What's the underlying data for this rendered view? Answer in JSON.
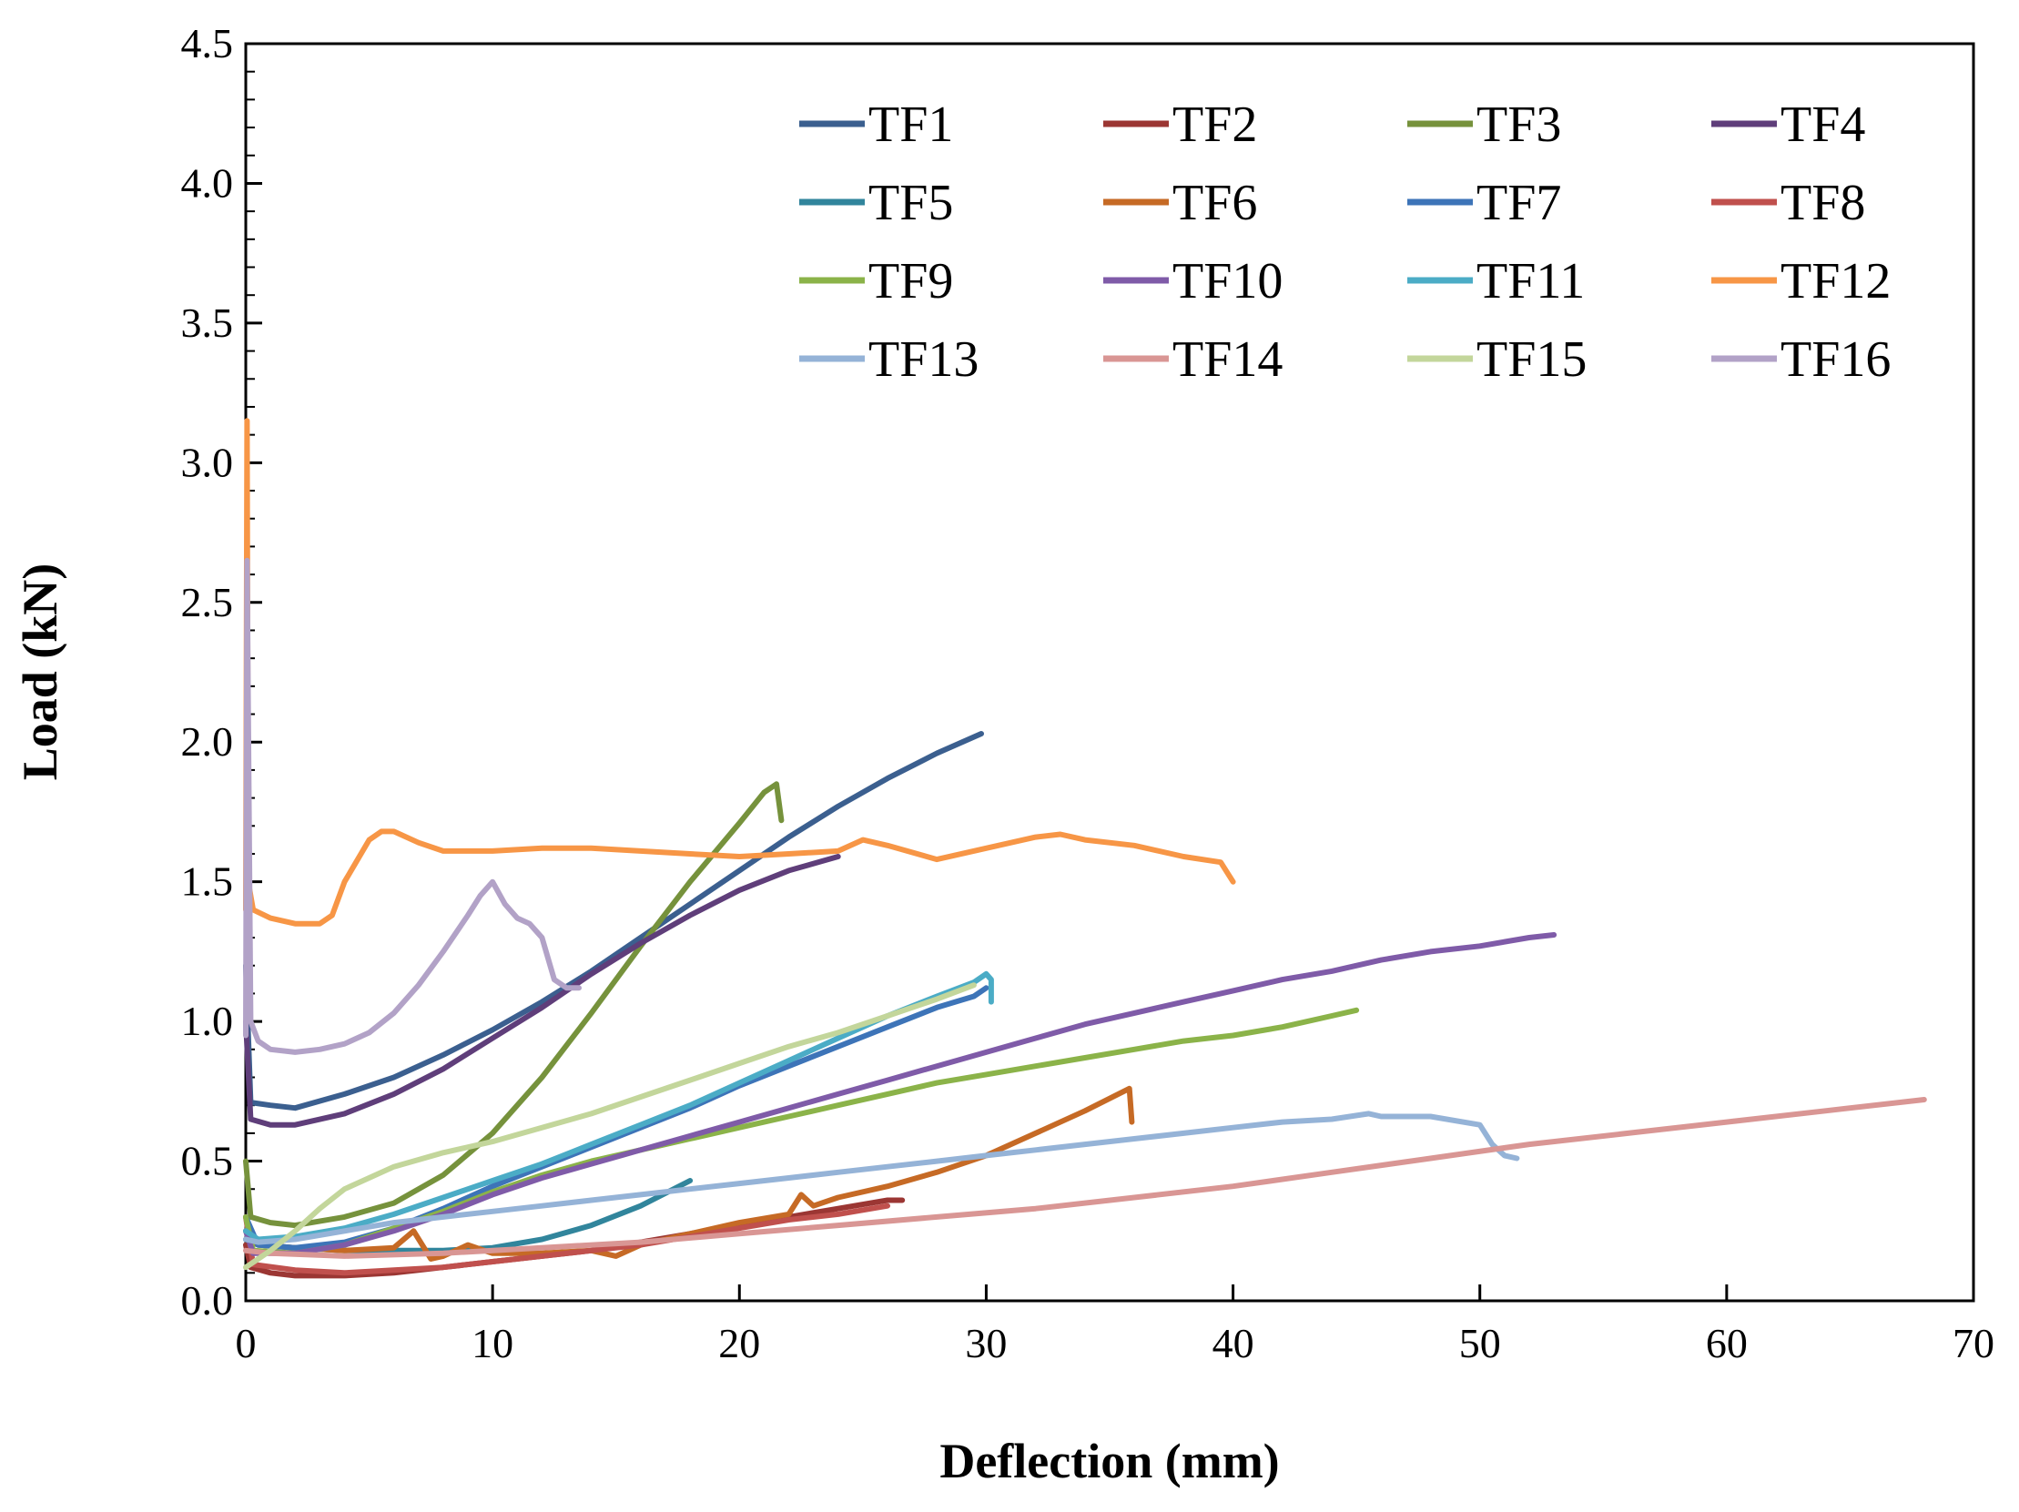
{
  "chart_data": {
    "type": "line",
    "title": "",
    "xlabel": "Deflection (mm)",
    "ylabel": "Load (kN)",
    "xlim": [
      0,
      70
    ],
    "ylim": [
      0,
      4.5
    ],
    "xticks": [
      0,
      10,
      20,
      30,
      40,
      50,
      60,
      70
    ],
    "yticks": [
      0.0,
      0.5,
      1.0,
      1.5,
      2.0,
      2.5,
      3.0,
      3.5,
      4.0,
      4.5
    ],
    "xtick_labels": [
      "0",
      "10",
      "20",
      "30",
      "40",
      "50",
      "60",
      "70"
    ],
    "ytick_labels": [
      "0.0",
      "0.5",
      "1.0",
      "1.5",
      "2.0",
      "2.5",
      "3.0",
      "3.5",
      "4.0",
      "4.5"
    ],
    "grid": false,
    "legend_position": "top-right",
    "series": [
      {
        "name": "TF1",
        "color": "#3b5f8f",
        "x": [
          0,
          0.2,
          1,
          2,
          4,
          6,
          8,
          10,
          12,
          14,
          16,
          18,
          20,
          22,
          24,
          26,
          28,
          29.8
        ],
        "y": [
          1.2,
          0.71,
          0.7,
          0.69,
          0.74,
          0.8,
          0.88,
          0.97,
          1.07,
          1.18,
          1.3,
          1.42,
          1.54,
          1.66,
          1.77,
          1.87,
          1.96,
          2.03
        ]
      },
      {
        "name": "TF2",
        "color": "#9b3633",
        "x": [
          0,
          0.2,
          1,
          2,
          4,
          6,
          8,
          10,
          12,
          14,
          16,
          18,
          20,
          22,
          24,
          26,
          26.6
        ],
        "y": [
          0.2,
          0.12,
          0.1,
          0.09,
          0.09,
          0.1,
          0.12,
          0.14,
          0.16,
          0.18,
          0.21,
          0.24,
          0.27,
          0.3,
          0.33,
          0.36,
          0.36
        ]
      },
      {
        "name": "TF3",
        "color": "#76923c",
        "x": [
          0,
          0.2,
          1,
          2,
          4,
          6,
          8,
          10,
          12,
          14,
          16,
          18,
          20,
          21,
          21.5,
          21.7
        ],
        "y": [
          0.5,
          0.3,
          0.28,
          0.27,
          0.3,
          0.35,
          0.45,
          0.6,
          0.8,
          1.03,
          1.27,
          1.5,
          1.71,
          1.82,
          1.85,
          1.72
        ]
      },
      {
        "name": "TF4",
        "color": "#5f3e7a",
        "x": [
          0,
          0.2,
          1,
          2,
          4,
          6,
          8,
          10,
          12,
          14,
          16,
          18,
          20,
          22,
          24
        ],
        "y": [
          1.0,
          0.65,
          0.63,
          0.63,
          0.67,
          0.74,
          0.83,
          0.94,
          1.05,
          1.17,
          1.28,
          1.38,
          1.47,
          1.54,
          1.59
        ]
      },
      {
        "name": "TF5",
        "color": "#31859c",
        "x": [
          0,
          0.5,
          2,
          4,
          6,
          8,
          10,
          12,
          14,
          16,
          18
        ],
        "y": [
          0.22,
          0.2,
          0.19,
          0.18,
          0.18,
          0.18,
          0.19,
          0.22,
          0.27,
          0.34,
          0.43
        ]
      },
      {
        "name": "TF6",
        "color": "#c66a25",
        "x": [
          0,
          0.5,
          2,
          4,
          6,
          6.8,
          7.5,
          8,
          9,
          10,
          12,
          14,
          15,
          16,
          18,
          20,
          22,
          22.5,
          23,
          24,
          26,
          28,
          30,
          32,
          34,
          35.8,
          35.9
        ],
        "y": [
          0.25,
          0.2,
          0.19,
          0.18,
          0.19,
          0.25,
          0.15,
          0.16,
          0.2,
          0.17,
          0.17,
          0.18,
          0.16,
          0.2,
          0.24,
          0.28,
          0.31,
          0.38,
          0.34,
          0.37,
          0.41,
          0.46,
          0.52,
          0.6,
          0.68,
          0.76,
          0.64
        ]
      },
      {
        "name": "TF7",
        "color": "#3d74b8",
        "x": [
          0,
          0.5,
          2,
          4,
          6,
          8,
          10,
          12,
          14,
          16,
          18,
          20,
          22,
          24,
          26,
          28,
          29.5,
          30
        ],
        "y": [
          0.3,
          0.2,
          0.19,
          0.21,
          0.26,
          0.33,
          0.41,
          0.48,
          0.55,
          0.62,
          0.69,
          0.77,
          0.84,
          0.91,
          0.98,
          1.05,
          1.09,
          1.12
        ]
      },
      {
        "name": "TF8",
        "color": "#c0504d",
        "x": [
          0,
          0.3,
          2,
          4,
          6,
          8,
          10,
          12,
          14,
          16,
          18,
          20,
          22,
          24,
          26
        ],
        "y": [
          0.3,
          0.13,
          0.11,
          0.1,
          0.11,
          0.12,
          0.14,
          0.16,
          0.18,
          0.2,
          0.23,
          0.26,
          0.29,
          0.31,
          0.34
        ]
      },
      {
        "name": "TF9",
        "color": "#8bb349",
        "x": [
          0,
          0.3,
          2,
          4,
          6,
          8,
          10,
          12,
          14,
          16,
          18,
          20,
          22,
          24,
          26,
          28,
          30,
          32,
          34,
          36,
          38,
          40,
          42,
          44,
          45
        ],
        "y": [
          0.3,
          0.18,
          0.17,
          0.2,
          0.26,
          0.32,
          0.39,
          0.45,
          0.5,
          0.54,
          0.58,
          0.62,
          0.66,
          0.7,
          0.74,
          0.78,
          0.81,
          0.84,
          0.87,
          0.9,
          0.93,
          0.95,
          0.98,
          1.02,
          1.04
        ]
      },
      {
        "name": "TF10",
        "color": "#7f5ba8",
        "x": [
          0,
          0.3,
          2,
          4,
          6,
          8,
          10,
          12,
          14,
          16,
          18,
          20,
          22,
          24,
          26,
          28,
          30,
          32,
          34,
          36,
          38,
          40,
          42,
          44,
          46,
          48,
          50,
          52,
          53
        ],
        "y": [
          0.25,
          0.17,
          0.17,
          0.2,
          0.25,
          0.31,
          0.38,
          0.44,
          0.49,
          0.54,
          0.59,
          0.64,
          0.69,
          0.74,
          0.79,
          0.84,
          0.89,
          0.94,
          0.99,
          1.03,
          1.07,
          1.11,
          1.15,
          1.18,
          1.22,
          1.25,
          1.27,
          1.3,
          1.31
        ]
      },
      {
        "name": "TF11",
        "color": "#4bacc6",
        "x": [
          0,
          0.5,
          2,
          4,
          6,
          8,
          10,
          12,
          14,
          16,
          18,
          20,
          22,
          24,
          26,
          28,
          29.5,
          30,
          30.2,
          30.2
        ],
        "y": [
          0.25,
          0.22,
          0.23,
          0.26,
          0.31,
          0.37,
          0.43,
          0.49,
          0.56,
          0.63,
          0.7,
          0.78,
          0.86,
          0.94,
          1.02,
          1.09,
          1.14,
          1.17,
          1.15,
          1.07
        ]
      },
      {
        "name": "TF12",
        "color": "#f79646",
        "x": [
          0,
          0.05,
          0.1,
          0.3,
          1,
          2,
          3,
          3.5,
          4,
          5,
          5.5,
          6,
          7,
          8,
          10,
          12,
          14,
          16,
          18,
          20,
          22,
          24,
          25,
          26,
          28,
          30,
          32,
          33,
          34,
          36,
          38,
          39.5,
          40
        ],
        "y": [
          1.4,
          3.15,
          1.5,
          1.4,
          1.37,
          1.35,
          1.35,
          1.38,
          1.5,
          1.65,
          1.68,
          1.68,
          1.64,
          1.61,
          1.61,
          1.62,
          1.62,
          1.61,
          1.6,
          1.59,
          1.6,
          1.61,
          1.65,
          1.63,
          1.58,
          1.62,
          1.66,
          1.67,
          1.65,
          1.63,
          1.59,
          1.57,
          1.5
        ]
      },
      {
        "name": "TF13",
        "color": "#95b3d7",
        "x": [
          0,
          0.5,
          2,
          4,
          6,
          8,
          10,
          12,
          14,
          16,
          18,
          20,
          22,
          24,
          26,
          28,
          30,
          32,
          34,
          36,
          38,
          40,
          42,
          44,
          45.5,
          46,
          48,
          50,
          50.5,
          51,
          51.5
        ],
        "y": [
          0.22,
          0.21,
          0.22,
          0.25,
          0.28,
          0.3,
          0.32,
          0.34,
          0.36,
          0.38,
          0.4,
          0.42,
          0.44,
          0.46,
          0.48,
          0.5,
          0.52,
          0.54,
          0.56,
          0.58,
          0.6,
          0.62,
          0.64,
          0.65,
          0.67,
          0.66,
          0.66,
          0.63,
          0.56,
          0.52,
          0.51
        ]
      },
      {
        "name": "TF14",
        "color": "#d99694",
        "x": [
          0,
          1,
          4,
          8,
          12,
          16,
          20,
          24,
          28,
          32,
          36,
          40,
          44,
          48,
          52,
          56,
          60,
          64,
          68
        ],
        "y": [
          0.18,
          0.17,
          0.16,
          0.17,
          0.19,
          0.21,
          0.24,
          0.27,
          0.3,
          0.33,
          0.37,
          0.41,
          0.46,
          0.51,
          0.56,
          0.6,
          0.64,
          0.68,
          0.72
        ]
      },
      {
        "name": "TF15",
        "color": "#c3d69b",
        "x": [
          0,
          0.5,
          1,
          2,
          3,
          4,
          6,
          8,
          10,
          12,
          14,
          16,
          18,
          20,
          22,
          24,
          26,
          28,
          29.5
        ],
        "y": [
          0.12,
          0.15,
          0.18,
          0.25,
          0.33,
          0.4,
          0.48,
          0.53,
          0.57,
          0.62,
          0.67,
          0.73,
          0.79,
          0.85,
          0.91,
          0.96,
          1.02,
          1.08,
          1.13
        ]
      },
      {
        "name": "TF16",
        "color": "#b2a2c7",
        "x": [
          0,
          0.05,
          0.2,
          0.5,
          1,
          2,
          3,
          4,
          5,
          6,
          7,
          8,
          9,
          9.5,
          10,
          10.5,
          11,
          11.5,
          12,
          12.5,
          13,
          13.5
        ],
        "y": [
          0.95,
          2.65,
          1.0,
          0.93,
          0.9,
          0.89,
          0.9,
          0.92,
          0.96,
          1.03,
          1.13,
          1.25,
          1.38,
          1.45,
          1.5,
          1.42,
          1.37,
          1.35,
          1.3,
          1.15,
          1.12,
          1.12
        ]
      }
    ]
  }
}
